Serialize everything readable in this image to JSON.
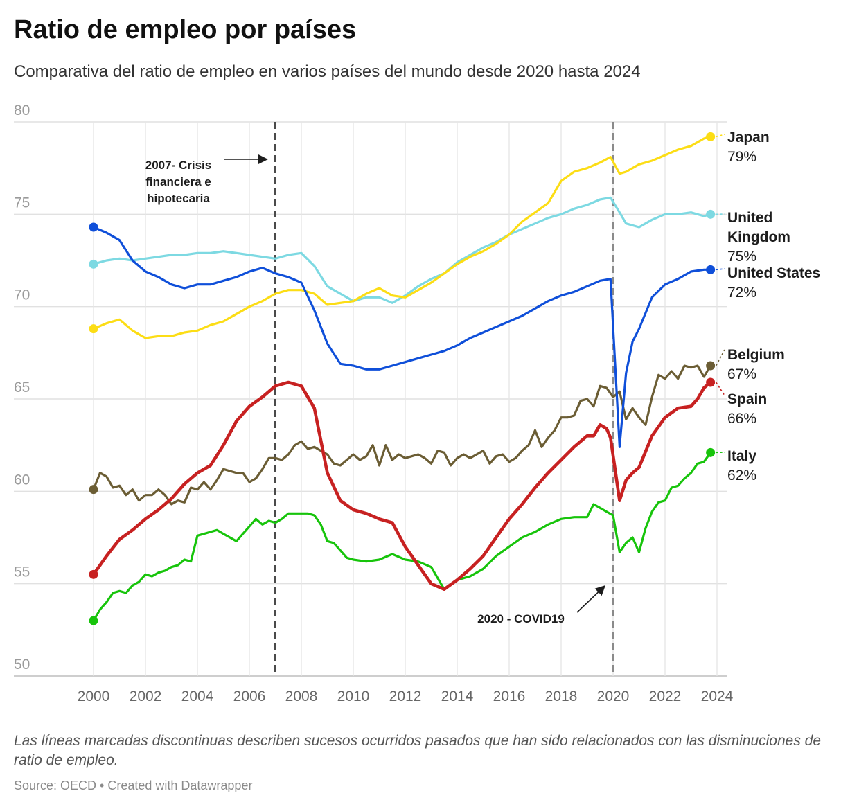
{
  "title": "Ratio de empleo por países",
  "subtitle": "Comparativa del ratio de empleo en varios países del mundo desde 2020 hasta 2024",
  "notes": "Las líneas marcadas discontinuas describen sucesos ocurridos pasados que han sido relacionados con las disminuciones de ratio de empleo.",
  "source": "Source: OECD • Created with Datawrapper",
  "chart_data": {
    "type": "line",
    "title": "Ratio de empleo por países",
    "xlabel": "",
    "ylabel": "",
    "xlim": [
      1999.6,
      2024.4
    ],
    "ylim": [
      50,
      80
    ],
    "grid": true,
    "legend": "direct labels at line ends (right)",
    "x_ticks": [
      2000,
      2002,
      2004,
      2006,
      2008,
      2010,
      2012,
      2014,
      2016,
      2018,
      2020,
      2022,
      2024
    ],
    "y_ticks": [
      50,
      55,
      60,
      65,
      70,
      75,
      80
    ],
    "annotations": [
      {
        "x": 2007.0,
        "text": [
          "2007- Crisis",
          "financiera e",
          "hipotecaria"
        ]
      },
      {
        "x": 2020.0,
        "text": [
          "2020 - COVID19"
        ]
      }
    ],
    "series": [
      {
        "name": "Japan",
        "end_label": "79%",
        "color": "#fcdd15",
        "width": 3.2,
        "x": [
          2000,
          2000.5,
          2001,
          2001.5,
          2002,
          2002.5,
          2003,
          2003.5,
          2004,
          2004.5,
          2005,
          2005.5,
          2006,
          2006.5,
          2007,
          2007.5,
          2008,
          2008.5,
          2009,
          2009.5,
          2010,
          2010.5,
          2011,
          2011.5,
          2012,
          2012.5,
          2013,
          2013.5,
          2014,
          2014.5,
          2015,
          2015.5,
          2016,
          2016.5,
          2017,
          2017.5,
          2018,
          2018.5,
          2019,
          2019.5,
          2019.9,
          2020.25,
          2020.5,
          2021,
          2021.5,
          2022,
          2022.5,
          2023,
          2023.5,
          2023.75
        ],
        "y": [
          68.8,
          69.1,
          69.3,
          68.7,
          68.3,
          68.4,
          68.4,
          68.6,
          68.7,
          69,
          69.2,
          69.6,
          70,
          70.3,
          70.7,
          70.9,
          70.9,
          70.7,
          70.1,
          70.2,
          70.3,
          70.7,
          71,
          70.6,
          70.5,
          70.9,
          71.3,
          71.8,
          72.3,
          72.7,
          73,
          73.4,
          73.9,
          74.6,
          75.1,
          75.6,
          76.8,
          77.3,
          77.5,
          77.8,
          78.1,
          77.2,
          77.3,
          77.7,
          77.9,
          78.2,
          78.5,
          78.7,
          79.1,
          79.2
        ]
      },
      {
        "name": "United Kingdom",
        "end_label": "75%",
        "color": "#7dd9e2",
        "width": 3.2,
        "x": [
          2000,
          2000.5,
          2001,
          2001.5,
          2002,
          2002.5,
          2003,
          2003.5,
          2004,
          2004.5,
          2005,
          2005.5,
          2006,
          2006.5,
          2007,
          2007.5,
          2008,
          2008.5,
          2009,
          2009.5,
          2010,
          2010.5,
          2011,
          2011.5,
          2012,
          2012.5,
          2013,
          2013.5,
          2014,
          2014.5,
          2015,
          2015.5,
          2016,
          2016.5,
          2017,
          2017.5,
          2018,
          2018.5,
          2019,
          2019.5,
          2019.9,
          2020.25,
          2020.5,
          2021,
          2021.5,
          2022,
          2022.5,
          2023,
          2023.5,
          2023.75
        ],
        "y": [
          72.3,
          72.5,
          72.6,
          72.5,
          72.6,
          72.7,
          72.8,
          72.8,
          72.9,
          72.9,
          73,
          72.9,
          72.8,
          72.7,
          72.6,
          72.8,
          72.9,
          72.2,
          71.1,
          70.7,
          70.3,
          70.5,
          70.5,
          70.2,
          70.6,
          71.1,
          71.5,
          71.8,
          72.4,
          72.8,
          73.2,
          73.5,
          73.9,
          74.2,
          74.5,
          74.8,
          75,
          75.3,
          75.5,
          75.8,
          75.9,
          75.1,
          74.5,
          74.3,
          74.7,
          75,
          75,
          75.1,
          74.9,
          75
        ]
      },
      {
        "name": "United States",
        "end_label": "72%",
        "color": "#0f4fd9",
        "width": 3.2,
        "x": [
          2000,
          2000.5,
          2001,
          2001.5,
          2002,
          2002.5,
          2003,
          2003.5,
          2004,
          2004.5,
          2005,
          2005.5,
          2006,
          2006.5,
          2007,
          2007.5,
          2008,
          2008.5,
          2009,
          2009.5,
          2010,
          2010.5,
          2011,
          2011.5,
          2012,
          2012.5,
          2013,
          2013.5,
          2014,
          2014.5,
          2015,
          2015.5,
          2016,
          2016.5,
          2017,
          2017.5,
          2018,
          2018.5,
          2019,
          2019.5,
          2019.9,
          2020.25,
          2020.5,
          2020.75,
          2021,
          2021.5,
          2022,
          2022.5,
          2023,
          2023.5,
          2023.75
        ],
        "y": [
          74.3,
          74,
          73.6,
          72.5,
          71.9,
          71.6,
          71.2,
          71,
          71.2,
          71.2,
          71.4,
          71.6,
          71.9,
          72.1,
          71.8,
          71.6,
          71.3,
          69.8,
          68,
          66.9,
          66.8,
          66.6,
          66.6,
          66.8,
          67,
          67.2,
          67.4,
          67.6,
          67.9,
          68.3,
          68.6,
          68.9,
          69.2,
          69.5,
          69.9,
          70.3,
          70.6,
          70.8,
          71.1,
          71.4,
          71.5,
          62.4,
          66.4,
          68.1,
          68.8,
          70.5,
          71.2,
          71.5,
          71.9,
          72,
          72
        ]
      },
      {
        "name": "Belgium",
        "end_label": "67%",
        "color": "#6b5d34",
        "width": 3.2,
        "x": [
          2000,
          2000.25,
          2000.5,
          2000.75,
          2001,
          2001.25,
          2001.5,
          2001.75,
          2002,
          2002.25,
          2002.5,
          2002.75,
          2003,
          2003.25,
          2003.5,
          2003.75,
          2004,
          2004.25,
          2004.5,
          2004.75,
          2005,
          2005.25,
          2005.5,
          2005.75,
          2006,
          2006.25,
          2006.5,
          2006.75,
          2007,
          2007.25,
          2007.5,
          2007.75,
          2008,
          2008.25,
          2008.5,
          2008.75,
          2009,
          2009.25,
          2009.5,
          2009.75,
          2010,
          2010.25,
          2010.5,
          2010.75,
          2011,
          2011.25,
          2011.5,
          2011.75,
          2012,
          2012.25,
          2012.5,
          2012.75,
          2013,
          2013.25,
          2013.5,
          2013.75,
          2014,
          2014.25,
          2014.5,
          2014.75,
          2015,
          2015.25,
          2015.5,
          2015.75,
          2016,
          2016.25,
          2016.5,
          2016.75,
          2017,
          2017.25,
          2017.5,
          2017.75,
          2018,
          2018.25,
          2018.5,
          2018.75,
          2019,
          2019.25,
          2019.5,
          2019.75,
          2020,
          2020.25,
          2020.5,
          2020.75,
          2021,
          2021.25,
          2021.5,
          2021.75,
          2022,
          2022.25,
          2022.5,
          2022.75,
          2023,
          2023.25,
          2023.5,
          2023.75
        ],
        "y": [
          60.1,
          61,
          60.8,
          60.2,
          60.3,
          59.8,
          60.1,
          59.5,
          59.8,
          59.8,
          60.1,
          59.8,
          59.3,
          59.5,
          59.4,
          60.2,
          60.1,
          60.5,
          60.1,
          60.6,
          61.2,
          61.1,
          61,
          61,
          60.5,
          60.7,
          61.2,
          61.8,
          61.8,
          61.7,
          62,
          62.5,
          62.7,
          62.3,
          62.4,
          62.2,
          62,
          61.5,
          61.4,
          61.7,
          62,
          61.7,
          61.9,
          62.5,
          61.4,
          62.5,
          61.7,
          62,
          61.8,
          61.9,
          62,
          61.8,
          61.5,
          62.2,
          62.1,
          61.4,
          61.8,
          62,
          61.8,
          62,
          62.2,
          61.5,
          61.9,
          62,
          61.6,
          61.8,
          62.2,
          62.5,
          63.3,
          62.4,
          62.9,
          63.3,
          64,
          64,
          64.1,
          64.9,
          65,
          64.6,
          65.7,
          65.6,
          65.1,
          65.4,
          63.9,
          64.5,
          64,
          63.6,
          65.1,
          66.3,
          66.1,
          66.5,
          66.1,
          66.8,
          66.7,
          66.8,
          66.2,
          66.8
        ]
      },
      {
        "name": "Spain",
        "end_label": "66%",
        "color": "#c72121",
        "width": 4.6,
        "x": [
          2000,
          2000.5,
          2001,
          2001.5,
          2002,
          2002.5,
          2003,
          2003.5,
          2004,
          2004.5,
          2005,
          2005.5,
          2006,
          2006.5,
          2007,
          2007.5,
          2008,
          2008.5,
          2009,
          2009.5,
          2010,
          2010.5,
          2011,
          2011.5,
          2012,
          2012.5,
          2013,
          2013.5,
          2014,
          2014.5,
          2015,
          2015.5,
          2016,
          2016.5,
          2017,
          2017.5,
          2018,
          2018.5,
          2019,
          2019.25,
          2019.5,
          2019.75,
          2019.9,
          2020.25,
          2020.5,
          2020.75,
          2021,
          2021.5,
          2022,
          2022.5,
          2023,
          2023.25,
          2023.5,
          2023.75
        ],
        "y": [
          55.5,
          56.5,
          57.4,
          57.9,
          58.5,
          59,
          59.6,
          60.4,
          61,
          61.4,
          62.5,
          63.8,
          64.6,
          65.1,
          65.7,
          65.9,
          65.7,
          64.5,
          61,
          59.5,
          59,
          58.8,
          58.5,
          58.3,
          57,
          56,
          55,
          54.7,
          55.2,
          55.8,
          56.5,
          57.5,
          58.5,
          59.3,
          60.2,
          61,
          61.7,
          62.4,
          63,
          63,
          63.6,
          63.4,
          62.9,
          59.5,
          60.6,
          61,
          61.3,
          63,
          64,
          64.5,
          64.6,
          65,
          65.6,
          65.9
        ]
      },
      {
        "name": "Italy",
        "end_label": "62%",
        "color": "#17c40b",
        "width": 3.2,
        "x": [
          2000,
          2000.25,
          2000.5,
          2000.75,
          2001,
          2001.25,
          2001.5,
          2001.75,
          2002,
          2002.25,
          2002.5,
          2002.75,
          2003,
          2003.25,
          2003.5,
          2003.75,
          2004,
          2004.25,
          2004.5,
          2004.75,
          2005,
          2005.25,
          2005.5,
          2005.75,
          2006,
          2006.25,
          2006.5,
          2006.75,
          2007,
          2007.25,
          2007.5,
          2007.75,
          2008,
          2008.25,
          2008.5,
          2008.75,
          2009,
          2009.25,
          2009.5,
          2009.75,
          2010,
          2010.5,
          2011,
          2011.5,
          2012,
          2012.5,
          2013,
          2013.5,
          2014,
          2014.5,
          2015,
          2015.5,
          2016,
          2016.5,
          2017,
          2017.5,
          2018,
          2018.5,
          2019,
          2019.25,
          2019.5,
          2019.75,
          2020,
          2020.25,
          2020.5,
          2020.75,
          2021,
          2021.25,
          2021.5,
          2021.75,
          2022,
          2022.25,
          2022.5,
          2022.75,
          2023,
          2023.25,
          2023.5,
          2023.75
        ],
        "y": [
          53,
          53.6,
          54,
          54.5,
          54.6,
          54.5,
          54.9,
          55.1,
          55.5,
          55.4,
          55.6,
          55.7,
          55.9,
          56,
          56.3,
          56.2,
          57.6,
          57.7,
          57.8,
          57.9,
          57.7,
          57.5,
          57.3,
          57.7,
          58.1,
          58.5,
          58.2,
          58.4,
          58.3,
          58.5,
          58.8,
          58.8,
          58.8,
          58.8,
          58.7,
          58.2,
          57.3,
          57.2,
          56.8,
          56.4,
          56.3,
          56.2,
          56.3,
          56.6,
          56.3,
          56.2,
          55.9,
          54.7,
          55.2,
          55.4,
          55.8,
          56.5,
          57,
          57.5,
          57.8,
          58.2,
          58.5,
          58.6,
          58.6,
          59.3,
          59.1,
          58.9,
          58.7,
          56.7,
          57.2,
          57.5,
          56.7,
          58,
          58.9,
          59.4,
          59.5,
          60.2,
          60.3,
          60.7,
          61,
          61.5,
          61.6,
          62.1
        ]
      }
    ]
  }
}
